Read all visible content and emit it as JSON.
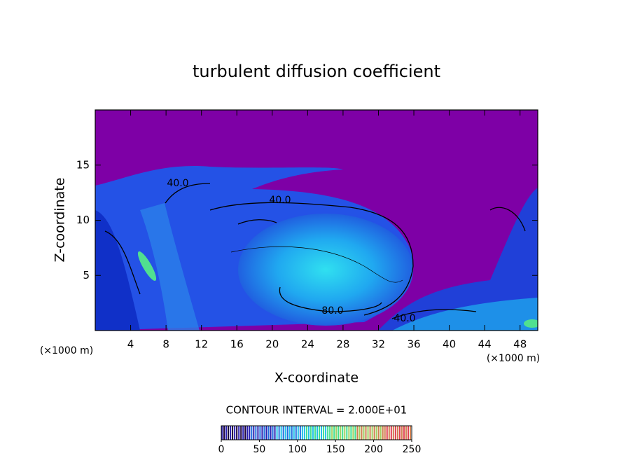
{
  "chart_data": {
    "type": "contour",
    "title": "turbulent diffusion coefficient",
    "x_label": "X-coordinate",
    "y_label": "Z-coordinate",
    "x_unit": "(×1000 m)",
    "xlim": [
      0,
      50
    ],
    "xticks": [
      4,
      8,
      12,
      16,
      20,
      24,
      28,
      32,
      36,
      40,
      44,
      48
    ],
    "ylim": [
      0,
      20
    ],
    "yticks": [
      5,
      10,
      15
    ],
    "contour_labels": [
      {
        "value": 40,
        "label": "40.0"
      },
      {
        "value": 40,
        "label": "40.0"
      },
      {
        "value": 80,
        "label": "80.0"
      },
      {
        "value": 40,
        "label": "40.0"
      }
    ],
    "contour_interval_label": "CONTOUR INTERVAL = 2.000E+01",
    "colorbar": {
      "lim": [
        0,
        250
      ],
      "ticks": [
        0,
        50,
        100,
        150,
        200,
        250
      ],
      "colors": [
        "#1a0038",
        "#2a20b0",
        "#2070e0",
        "#20c0e8",
        "#40e090",
        "#a0d060",
        "#d08050",
        "#e04050"
      ]
    }
  }
}
